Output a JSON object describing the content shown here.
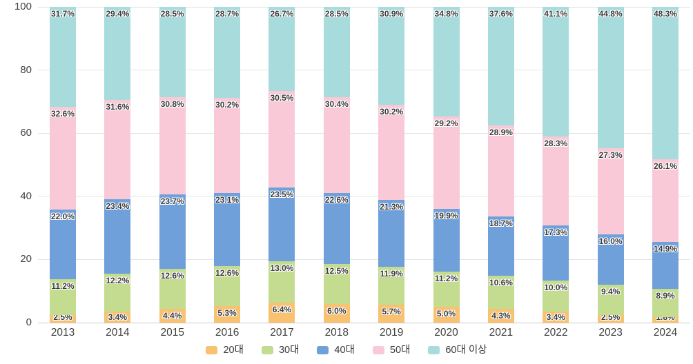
{
  "chart_data": {
    "type": "bar",
    "stacked": true,
    "title": "",
    "xlabel": "",
    "ylabel": "",
    "categories": [
      "2013",
      "2014",
      "2015",
      "2016",
      "2017",
      "2018",
      "2019",
      "2020",
      "2021",
      "2022",
      "2023",
      "2024"
    ],
    "series": [
      {
        "name": "20대",
        "color": "#f8c271",
        "values": [
          2.5,
          3.4,
          4.4,
          5.3,
          6.4,
          6.0,
          5.7,
          5.0,
          4.3,
          3.4,
          2.5,
          1.8
        ]
      },
      {
        "name": "30대",
        "color": "#c3dc8f",
        "values": [
          11.2,
          12.2,
          12.6,
          12.6,
          13.0,
          12.5,
          11.9,
          11.2,
          10.6,
          10.0,
          9.4,
          8.9
        ]
      },
      {
        "name": "40대",
        "color": "#6fa0da",
        "values": [
          22.0,
          23.4,
          23.7,
          23.1,
          23.5,
          22.6,
          21.3,
          19.9,
          18.7,
          17.3,
          16.0,
          14.9
        ]
      },
      {
        "name": "50대",
        "color": "#f9c9d8",
        "values": [
          32.6,
          31.6,
          30.8,
          30.2,
          30.5,
          30.4,
          30.2,
          29.2,
          28.9,
          28.3,
          27.3,
          26.1
        ]
      },
      {
        "name": "60대 이상",
        "color": "#a8dbdc",
        "values": [
          31.7,
          29.4,
          28.5,
          28.7,
          26.7,
          28.5,
          30.9,
          34.8,
          37.6,
          41.1,
          44.8,
          48.3
        ]
      }
    ],
    "ylim": [
      0,
      100
    ],
    "y_ticks": [
      0,
      20,
      40,
      60,
      80,
      100
    ],
    "grid": true,
    "legend_position": "bottom",
    "value_label_suffix": "%"
  }
}
